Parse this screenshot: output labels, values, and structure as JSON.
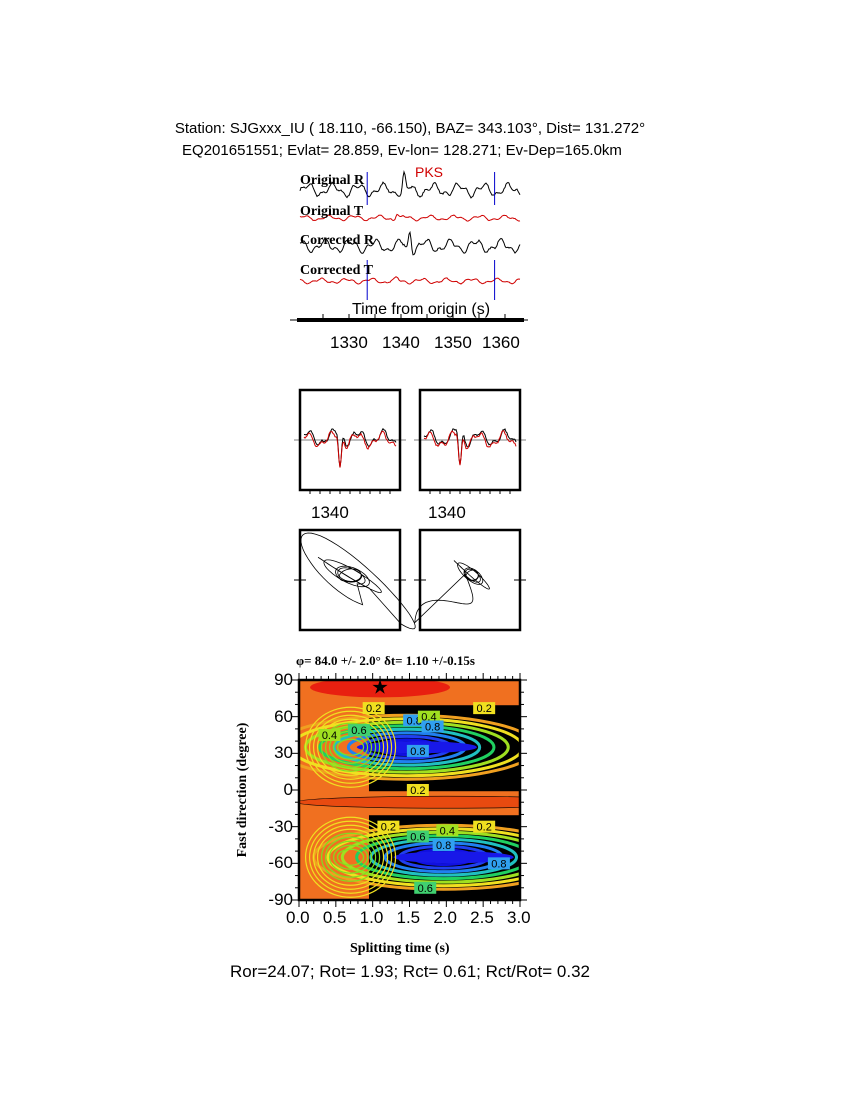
{
  "header": {
    "line1": "Station: SJGxxx_IU (  18.110,  -66.150), BAZ=  343.103°, Dist=  131.272°",
    "line2": "EQ201651551; Evlat=  28.859, Ev-lon= 128.271; Ev-Dep=165.0km"
  },
  "chart_data": [
    {
      "type": "line",
      "traces": [
        {
          "name": "Original R",
          "color": "#000000"
        },
        {
          "name": "Original T",
          "color": "#d00000"
        },
        {
          "name": "Corrected R",
          "color": "#000000"
        },
        {
          "name": "Corrected T",
          "color": "#d00000"
        }
      ],
      "phase_label": "PKS",
      "phase_color": "#d00000",
      "window_markers": [
        1333.5,
        1358
      ],
      "marker_color": "#0000cc",
      "xlabel": "Time from origin (s)",
      "xticks": [
        "1330",
        "1340",
        "1350",
        "1360"
      ],
      "xlim": [
        1320,
        1364
      ]
    },
    {
      "type": "line",
      "panels": [
        "original R/T overlay",
        "corrected R/T overlay"
      ],
      "xticks": [
        "1340",
        "1340"
      ]
    },
    {
      "type": "scatter",
      "panels": [
        "original particle motion",
        "corrected particle motion"
      ]
    },
    {
      "type": "heatmap",
      "title": "φ= 84.0 +/- 2.0° δt= 1.10 +/-0.15s",
      "xlabel": "Splitting time (s)",
      "ylabel": "Fast direction (degree)",
      "xlim": [
        0,
        3.0
      ],
      "ylim": [
        -90,
        90
      ],
      "xticks": [
        "0.0",
        "0.5",
        "1.0",
        "1.5",
        "2.0",
        "2.5",
        "3.0"
      ],
      "yticks": [
        "90",
        "60",
        "30",
        "0",
        "-30",
        "-60",
        "-90"
      ],
      "best_fit": {
        "dt": 1.1,
        "phi": 84.0
      },
      "minima": [
        {
          "dt": 1.6,
          "phi": 35
        },
        {
          "dt": 2.1,
          "phi": -55
        }
      ],
      "contour_labels": [
        "0.2",
        "0.4",
        "0.6",
        "0.8"
      ]
    }
  ],
  "footer": "Ror=24.07; Rot= 1.93; Rct= 0.61; Rct/Rot= 0.32"
}
